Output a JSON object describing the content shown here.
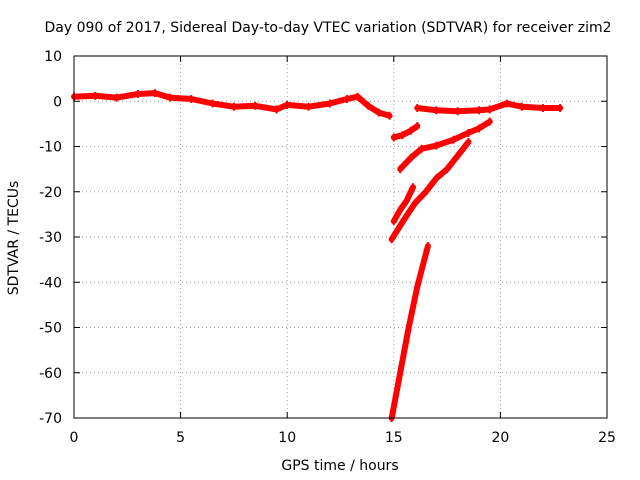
{
  "chart_data": {
    "type": "scatter",
    "title": "Day 090 of 2017, Sidereal Day-to-day VTEC variation (SDTVAR) for receiver zim2",
    "xlabel": "GPS time / hours",
    "ylabel": "SDTVAR / TECUs",
    "xlim": [
      0,
      25
    ],
    "ylim": [
      -70,
      10
    ],
    "xticks": [
      0,
      5,
      10,
      15,
      20,
      25
    ],
    "yticks": [
      10,
      0,
      -10,
      -20,
      -30,
      -40,
      -50,
      -60,
      -70
    ],
    "grid": true,
    "color": "#ff0000",
    "series": [
      {
        "points": [
          [
            0,
            1.0
          ],
          [
            1,
            1.2
          ],
          [
            2,
            0.8
          ],
          [
            3,
            1.6
          ],
          [
            3.8,
            1.8
          ],
          [
            4.5,
            0.8
          ],
          [
            5.5,
            0.5
          ],
          [
            6.5,
            -0.5
          ],
          [
            7.5,
            -1.2
          ],
          [
            8.5,
            -1.0
          ],
          [
            9.5,
            -1.8
          ],
          [
            10,
            -0.8
          ],
          [
            11,
            -1.2
          ],
          [
            12,
            -0.5
          ],
          [
            12.8,
            0.5
          ],
          [
            13.3,
            1.0
          ],
          [
            13.8,
            -1.0
          ],
          [
            14.3,
            -2.5
          ],
          [
            14.8,
            -3.2
          ]
        ]
      },
      {
        "points": [
          [
            15.0,
            -8.0
          ],
          [
            15.4,
            -7.5
          ],
          [
            15.8,
            -6.5
          ],
          [
            16.1,
            -5.5
          ]
        ]
      },
      {
        "points": [
          [
            16.1,
            -1.5
          ],
          [
            17,
            -2.0
          ],
          [
            18,
            -2.2
          ],
          [
            19,
            -2.0
          ],
          [
            19.5,
            -1.8
          ],
          [
            20.3,
            -0.5
          ],
          [
            21,
            -1.2
          ],
          [
            22,
            -1.5
          ],
          [
            22.8,
            -1.5
          ]
        ]
      },
      {
        "points": [
          [
            15.0,
            -26.5
          ],
          [
            15.3,
            -24.0
          ],
          [
            15.6,
            -22.0
          ],
          [
            15.9,
            -19.0
          ]
        ]
      },
      {
        "points": [
          [
            15.3,
            -15.0
          ],
          [
            15.8,
            -12.5
          ],
          [
            16.3,
            -10.5
          ],
          [
            17,
            -9.8
          ],
          [
            17.8,
            -8.5
          ],
          [
            18.5,
            -7.0
          ],
          [
            19,
            -6.0
          ],
          [
            19.5,
            -4.5
          ]
        ]
      },
      {
        "points": [
          [
            14.9,
            -30.5
          ],
          [
            15.5,
            -26.0
          ],
          [
            16,
            -22.5
          ],
          [
            16.5,
            -20.0
          ],
          [
            17,
            -17.0
          ],
          [
            17.5,
            -15.0
          ],
          [
            18,
            -12.0
          ],
          [
            18.5,
            -9.0
          ]
        ]
      },
      {
        "points": [
          [
            14.9,
            -70.0
          ],
          [
            15.3,
            -60.0
          ],
          [
            15.7,
            -50.0
          ],
          [
            16.1,
            -41.0
          ],
          [
            16.6,
            -32.0
          ]
        ]
      }
    ]
  }
}
